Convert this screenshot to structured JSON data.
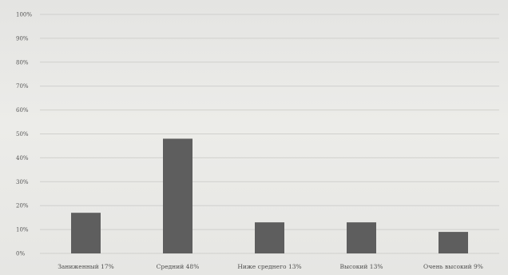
{
  "chart_data": {
    "type": "bar",
    "title": "",
    "categories": [
      "Заниженный 17%",
      "Средний 48%",
      "Ниже среднего 13%",
      "Высокий 13%",
      "Очень высокий 9%"
    ],
    "values": [
      17,
      48,
      13,
      13,
      9
    ],
    "y_ticks": [
      "0%",
      "10%",
      "20%",
      "30%",
      "40%",
      "50%",
      "60%",
      "70%",
      "80%",
      "90%",
      "100%"
    ],
    "xlabel": "",
    "ylabel": "",
    "ylim": [
      0,
      100
    ],
    "grid": true,
    "bar_color": "#5e5e5e",
    "background_color": "#e9e9e7"
  }
}
